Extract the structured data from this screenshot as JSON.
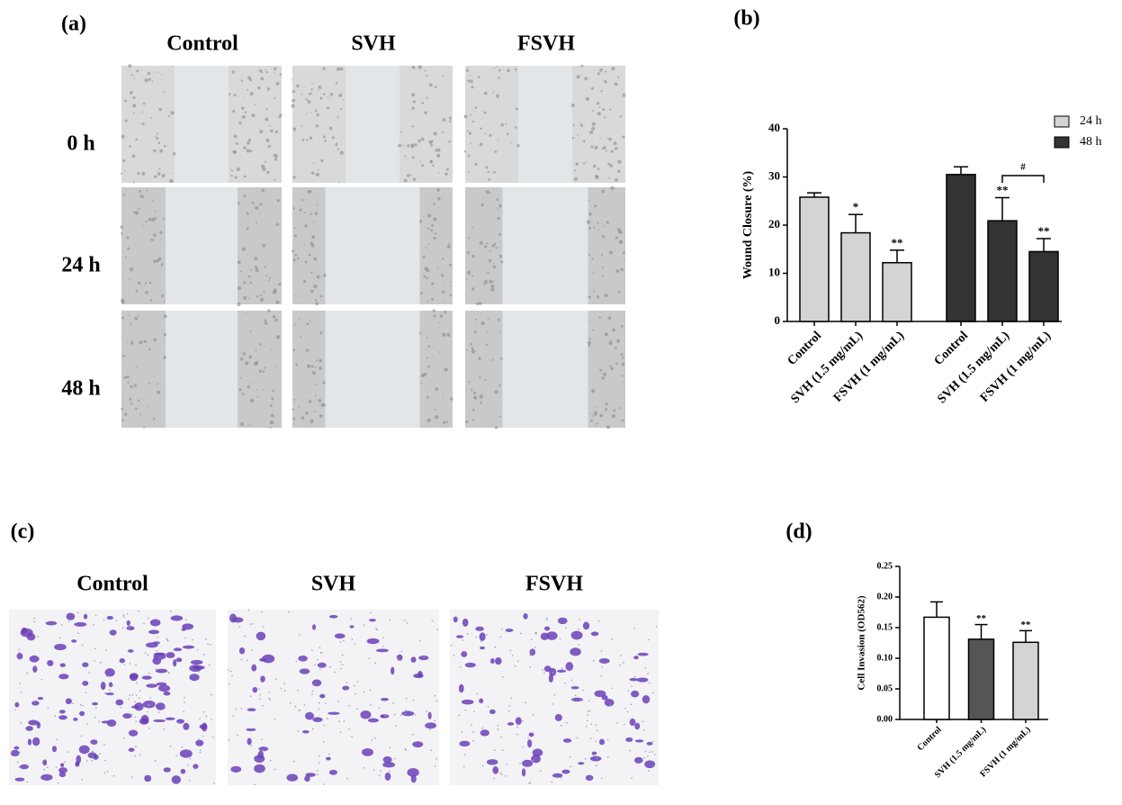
{
  "panels": {
    "a": {
      "label": "(a)",
      "columns": [
        "Control",
        "SVH",
        "FSVH"
      ],
      "rows": [
        "0 h",
        "24 h",
        "48 h"
      ]
    },
    "c": {
      "label": "(c)",
      "columns": [
        "Control",
        "SVH",
        "FSVH"
      ]
    }
  },
  "chart_data": [
    {
      "type": "bar",
      "panel_label": "(b)",
      "ylabel": "Wound Closure (%)",
      "categories": [
        "Control",
        "SVH (1.5 mg/mL)",
        "FSVH (1 mg/mL)"
      ],
      "series": [
        {
          "name": "24 h",
          "color": "#d4d4d4",
          "values": [
            25.8,
            18.4,
            12.2
          ],
          "errors": [
            0.9,
            3.8,
            2.6
          ],
          "significance": [
            null,
            "*",
            "**"
          ]
        },
        {
          "name": "48 h",
          "color": "#333333",
          "values": [
            30.5,
            20.9,
            14.5
          ],
          "errors": [
            1.6,
            4.8,
            2.7
          ],
          "significance": [
            null,
            "**",
            "**"
          ]
        }
      ],
      "annotation": "#",
      "ylim": [
        0,
        40
      ],
      "yticks": [
        0,
        10,
        20,
        30,
        40
      ],
      "legend": "top-right"
    },
    {
      "type": "bar",
      "panel_label": "(d)",
      "ylabel": "Cell Invasion (OD562)",
      "categories": [
        "Control",
        "SVH  (1.5 mg/mL)",
        "FSVH (1 mg/mL)"
      ],
      "values": [
        0.167,
        0.131,
        0.126
      ],
      "errors": [
        0.025,
        0.024,
        0.019
      ],
      "colors": [
        "#ffffff",
        "#555555",
        "#d4d4d4"
      ],
      "significance": [
        null,
        "**",
        "**"
      ],
      "ylim": [
        0,
        0.25
      ],
      "yticks": [
        {
          "value": 0,
          "label": "0.00"
        },
        {
          "value": 0.05,
          "label": "0.05"
        },
        {
          "value": 0.1,
          "label": "0.10"
        },
        {
          "value": 0.15,
          "label": "0.15"
        },
        {
          "value": 0.2,
          "label": "0.20"
        },
        {
          "value": 0.25,
          "label": "0.25"
        }
      ]
    }
  ]
}
